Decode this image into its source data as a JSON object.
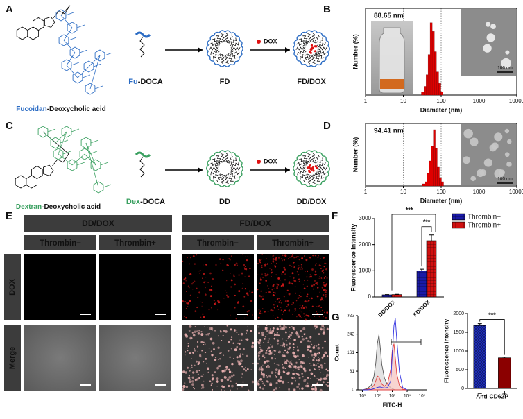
{
  "panels": {
    "labels": [
      "A",
      "B",
      "C",
      "D",
      "E",
      "F",
      "G"
    ]
  },
  "scheme_a": {
    "polymer": "Fucoidan",
    "linker": "-Deoxycholic acid",
    "conjugate_prefix": "Fu",
    "conjugate_suffix": "-DOCA",
    "micelle": "FD",
    "drug": "DOX",
    "loaded": "FD/DOX"
  },
  "scheme_c": {
    "polymer": "Dextran",
    "linker": "-Deoxycholic acid",
    "conjugate_prefix": "Dex",
    "conjugate_suffix": "-DOCA",
    "micelle": "DD",
    "drug": "DOX",
    "loaded": "DD/DOX"
  },
  "imaging": {
    "groups": [
      "DD/DOX",
      "FD/DOX"
    ],
    "conditions": [
      "Thrombin−",
      "Thrombin+",
      "Thrombin−",
      "Thrombin+"
    ],
    "rows": [
      "DOX",
      "Merge"
    ]
  },
  "chart_data": [
    {
      "type": "histogram",
      "annotation": "88.65 nm",
      "xlabel": "Diameter (nm)",
      "ylabel": "Number (%)",
      "xlog": true,
      "xlim": [
        1,
        10000
      ],
      "xticks": [
        1,
        10,
        100,
        1000,
        10000
      ],
      "ylim": [
        0,
        30
      ],
      "grid": true,
      "color": "#e00000",
      "bins": [
        30,
        35,
        40,
        45,
        51,
        58,
        66,
        75,
        86,
        98,
        112
      ],
      "counts": [
        1,
        3,
        7,
        14,
        25,
        22,
        15,
        8,
        4,
        1
      ],
      "inset_scale": "100 nm"
    },
    {
      "type": "histogram",
      "annotation": "94.41 nm",
      "xlabel": "Diameter (nm)",
      "ylabel": "Number (%)",
      "xlog": true,
      "xlim": [
        1,
        10000
      ],
      "xticks": [
        1,
        10,
        100,
        1000,
        10000
      ],
      "ylim": [
        0,
        30
      ],
      "grid": true,
      "color": "#e00000",
      "bins": [
        32,
        37,
        42,
        48,
        55,
        62,
        70,
        79,
        90,
        102,
        116
      ],
      "counts": [
        1,
        2,
        6,
        12,
        19,
        27,
        18,
        9,
        4,
        2
      ],
      "inset_scale": "100 nm"
    },
    {
      "type": "bar",
      "ylabel": "Fluorescence intensity",
      "categories": [
        "DD/DOX",
        "FD/DOX"
      ],
      "series": [
        {
          "name": "Thrombin−",
          "color": "#1a1aa8",
          "values": [
            80,
            1000
          ],
          "errors": [
            10,
            60
          ]
        },
        {
          "name": "Thrombin+",
          "color": "#d01010",
          "values": [
            90,
            2150
          ],
          "errors": [
            10,
            220
          ]
        }
      ],
      "ylim": [
        0,
        3000
      ],
      "yticks": [
        0,
        1000,
        2000,
        3000
      ],
      "annotations": [
        "***",
        "***"
      ]
    },
    {
      "type": "line",
      "xlabel": "FITC-H",
      "ylabel": "Count",
      "xlog": true,
      "xlim": [
        5,
        200000
      ],
      "xticks": [
        {
          "value": 10,
          "label": "10¹"
        },
        {
          "value": 100,
          "label": "10²"
        },
        {
          "value": 1000,
          "label": "10³"
        },
        {
          "value": 10000,
          "label": "10⁴"
        },
        {
          "value": 100000,
          "label": "10⁵"
        }
      ],
      "ylim": [
        0,
        322
      ],
      "yticks": [
        0,
        81,
        161,
        242,
        322
      ],
      "x": [
        10,
        20,
        40,
        60,
        80,
        100,
        130,
        160,
        200,
        300,
        500,
        800,
        1000,
        1300,
        1600,
        2000,
        3000,
        5000,
        10000
      ],
      "series": [
        {
          "color": "#555555",
          "fill": "#d9d9d9",
          "values": [
            0,
            5,
            20,
            60,
            120,
            200,
            240,
            180,
            110,
            50,
            20,
            10,
            5,
            2,
            0,
            0,
            0,
            0,
            0
          ]
        },
        {
          "color": "#e04040",
          "fill": "#f6c6c0",
          "values": [
            0,
            2,
            8,
            20,
            40,
            60,
            55,
            40,
            25,
            15,
            30,
            90,
            170,
            200,
            140,
            70,
            20,
            3,
            0
          ]
        },
        {
          "color": "#3030e0",
          "values": [
            0,
            0,
            2,
            5,
            8,
            10,
            12,
            12,
            10,
            8,
            10,
            40,
            150,
            280,
            310,
            220,
            80,
            10,
            0
          ]
        }
      ]
    },
    {
      "type": "bar",
      "ylabel": "Fluorescence intensity",
      "xlabel": "Anti-CD62P",
      "categories": [
        "−",
        "+"
      ],
      "series": [
        {
          "colors": [
            "#1f2fbf",
            "#8b0000"
          ],
          "values": [
            1680,
            820
          ],
          "errors": [
            50,
            20
          ]
        }
      ],
      "ylim": [
        0,
        2000
      ],
      "yticks": [
        0,
        500,
        1000,
        1500,
        2000
      ],
      "annotations": [
        "***"
      ]
    }
  ]
}
